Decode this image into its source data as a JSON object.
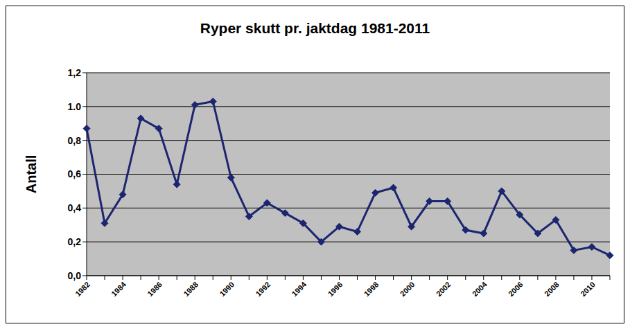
{
  "chart_data": {
    "type": "line",
    "title": "Ryper skutt pr. jaktdag 1981-2011",
    "y_label": "Antall",
    "categories": [
      "1982",
      null,
      "1984",
      null,
      "1986",
      null,
      "1988",
      null,
      "1990",
      null,
      "1992",
      null,
      "1994",
      null,
      "1996",
      null,
      "1998",
      null,
      "2000",
      null,
      "2002",
      null,
      "2004",
      null,
      "2006",
      null,
      "2008",
      null,
      "2010",
      null
    ],
    "series": [
      {
        "name": "Ryper skutt pr. jaktdag",
        "color": "#1c2570",
        "marker": "diamond",
        "values": [
          0.87,
          0.31,
          0.48,
          0.93,
          0.87,
          0.54,
          1.01,
          1.03,
          0.58,
          0.35,
          0.43,
          0.37,
          0.31,
          0.2,
          0.29,
          0.26,
          0.49,
          0.52,
          0.29,
          0.44,
          0.44,
          0.27,
          0.25,
          0.5,
          0.36,
          0.25,
          0.33,
          0.15,
          0.17,
          0.12
        ]
      }
    ],
    "ylim": [
      0,
      1.2
    ],
    "yticks": [
      {
        "value": 0,
        "label": "0,0"
      },
      {
        "value": 0.2,
        "label": "0,2"
      },
      {
        "value": 0.4,
        "label": "0,4"
      },
      {
        "value": 0.6,
        "label": "0,6"
      },
      {
        "value": 0.8,
        "label": "0,8"
      },
      {
        "value": 1.0,
        "label": "1.0"
      },
      {
        "value": 1.2,
        "label": "1,2"
      }
    ],
    "grid": true
  }
}
